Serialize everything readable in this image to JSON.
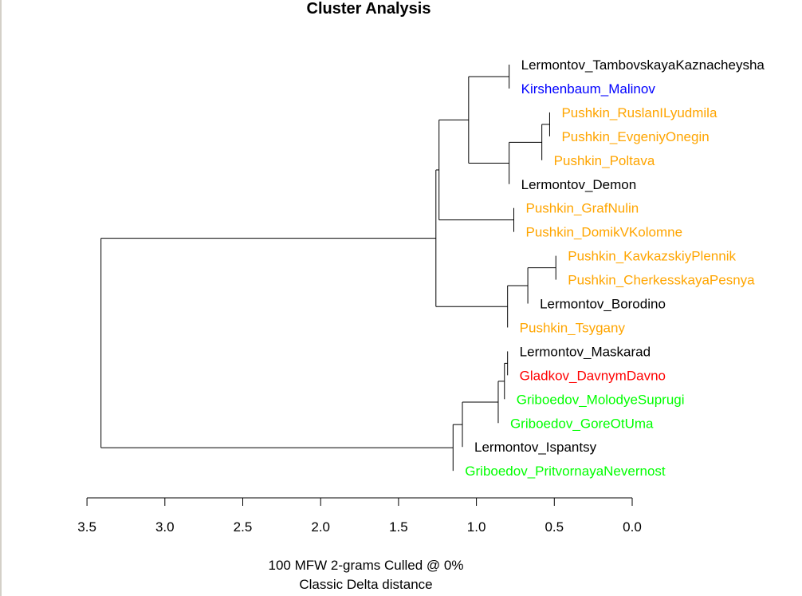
{
  "chart_data": {
    "type": "dendrogram",
    "title": "Cluster Analysis",
    "subtitle_lines": [
      "100 MFW 2-grams Culled @ 0%",
      "Classic Delta distance"
    ],
    "xlim": [
      3.5,
      0.0
    ],
    "ticks": [
      "3.5",
      "3.0",
      "2.5",
      "2.0",
      "1.5",
      "1.0",
      "0.5",
      "0.0"
    ],
    "tick_values": [
      3.5,
      3.0,
      2.5,
      2.0,
      1.5,
      1.0,
      0.5,
      0.0
    ],
    "colors": {
      "Lermontov": "#000000",
      "Kirshenbaum": "#0000ff",
      "Pushkin": "#ffa500",
      "Gladkov": "#ff0000",
      "Griboedov": "#00ff00"
    },
    "leaves": [
      {
        "label": "Lermontov_TambovskayaKaznacheysha",
        "color": "#000000"
      },
      {
        "label": "Kirshenbaum_Malinov",
        "color": "#0000ff"
      },
      {
        "label": "Pushkin_RuslanILyudmila",
        "color": "#ffa500"
      },
      {
        "label": "Pushkin_EvgeniyOnegin",
        "color": "#ffa500"
      },
      {
        "label": "Pushkin_Poltava",
        "color": "#ffa500"
      },
      {
        "label": "Lermontov_Demon",
        "color": "#000000"
      },
      {
        "label": "Pushkin_GrafNulin",
        "color": "#ffa500"
      },
      {
        "label": "Pushkin_DomikVKolomne",
        "color": "#ffa500"
      },
      {
        "label": "Pushkin_KavkazskiyPlennik",
        "color": "#ffa500"
      },
      {
        "label": "Pushkin_CherkesskayaPesnya",
        "color": "#ffa500"
      },
      {
        "label": "Lermontov_Borodino",
        "color": "#000000"
      },
      {
        "label": "Pushkin_Tsygany",
        "color": "#ffa500"
      },
      {
        "label": "Lermontov_Maskarad",
        "color": "#000000"
      },
      {
        "label": "Gladkov_DavnymDavno",
        "color": "#ff0000"
      },
      {
        "label": "Griboedov_MolodyeSuprugi",
        "color": "#00ff00"
      },
      {
        "label": "Griboedov_GoreOtUma",
        "color": "#00ff00"
      },
      {
        "label": "Lermontov_Ispantsy",
        "color": "#000000"
      },
      {
        "label": "Griboedov_PritvornayaNevernost",
        "color": "#00ff00"
      }
    ],
    "merges": [
      {
        "a": "L0",
        "b": "L1",
        "height": 0.79
      },
      {
        "a": "L2",
        "b": "L3",
        "height": 0.53
      },
      {
        "a": "M1",
        "b": "L4",
        "height": 0.58
      },
      {
        "a": "M2",
        "b": "L5",
        "height": 0.79
      },
      {
        "a": "M0",
        "b": "M3",
        "height": 1.05
      },
      {
        "a": "L6",
        "b": "L7",
        "height": 0.76
      },
      {
        "a": "M4",
        "b": "M5",
        "height": 1.24
      },
      {
        "a": "L8",
        "b": "L9",
        "height": 0.49
      },
      {
        "a": "M7",
        "b": "L10",
        "height": 0.67
      },
      {
        "a": "M8",
        "b": "L11",
        "height": 0.8
      },
      {
        "a": "M6",
        "b": "M9",
        "height": 1.26
      },
      {
        "a": "L12",
        "b": "L13",
        "height": 0.8
      },
      {
        "a": "M11",
        "b": "L14",
        "height": 0.82
      },
      {
        "a": "M12",
        "b": "L15",
        "height": 0.86
      },
      {
        "a": "M13",
        "b": "L16",
        "height": 1.09
      },
      {
        "a": "M14",
        "b": "L17",
        "height": 1.15
      },
      {
        "a": "M10",
        "b": "M15",
        "height": 3.41
      }
    ]
  }
}
